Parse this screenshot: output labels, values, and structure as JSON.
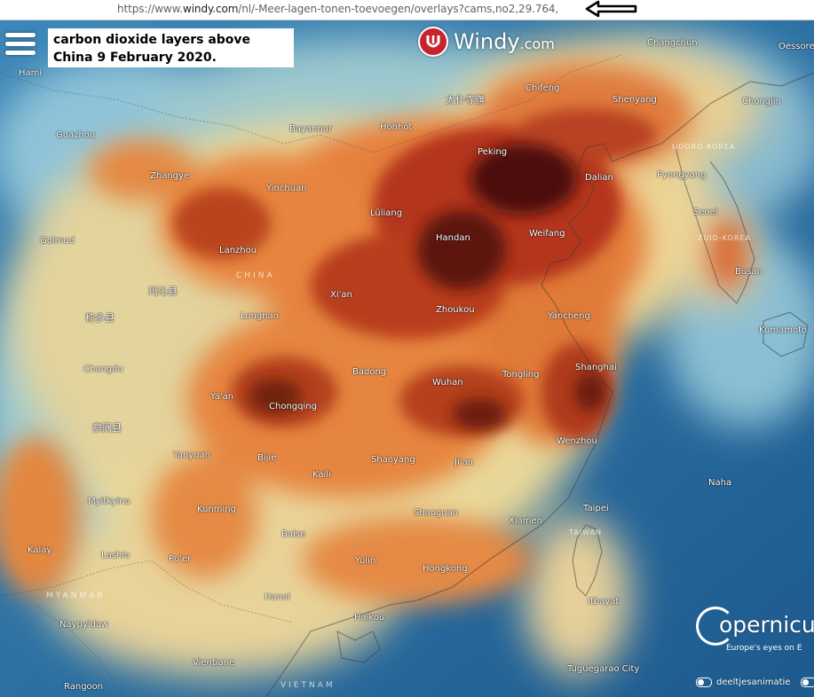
{
  "browser": {
    "url_prefix": "https://www.",
    "url_domain": "windy.com",
    "url_path": "/nl/-Meer-lagen-tonen-toevoegen/overlays?cams,no2,29.764,"
  },
  "annotation": {
    "line1": "carbon dioxide layers above",
    "line2": "China 9 February 2020."
  },
  "logo": {
    "name": "Windy",
    "suffix": ".com"
  },
  "copernicus": {
    "name": "opernicu",
    "tagline": "Europe's eyes on E"
  },
  "toggles": {
    "animation_label": "deeltjesanimatie"
  },
  "regions": {
    "china": "CHINA",
    "myanmar": "MYANMAR",
    "vietnam": "VIETNAM",
    "north_korea": "NOORD-KOREA",
    "south_korea": "ZUID-KOREA",
    "taiwan": "TAIWAN"
  },
  "cities": {
    "hami": "Hami",
    "changchun": "Changchun",
    "chifeng": "Chifeng",
    "taipusi": "太仆寺旗",
    "shenyang": "Shenyang",
    "chongjin": "Chongjin",
    "guazhou": "Guazhou",
    "bayannur": "Bayannur",
    "hohhot": "Hohhot",
    "peking": "Peking",
    "zhangye": "Zhangye",
    "yinchuan": "Yinchuan",
    "dalian": "Dalian",
    "pyongyang": "Pyongyang",
    "luliang": "Lüliang",
    "seoel": "Seoel",
    "golmud": "Golmud",
    "lanzhou": "Lanzhou",
    "handan": "Handan",
    "weifang": "Weifang",
    "busan": "Busan",
    "maqin": "玛沁县",
    "xian": "Xi'an",
    "zhoukou": "Zhoukou",
    "longnan": "Longnan",
    "chenduo": "称多县",
    "yancheng": "Yancheng",
    "kumamoto": "Kumamoto",
    "changdu": "Changdu",
    "badong": "Badong",
    "shanghai": "Shanghai",
    "tongling": "Tongling",
    "wuhan": "Wuhan",
    "yaan": "Ya'an",
    "chongqing": "Chongqing",
    "chayu": "察隅县",
    "wenzhou": "Wenzhou",
    "yanyuan": "Yanyuan",
    "bijie": "Bijie",
    "shaoyang": "Shaoyang",
    "jian": "Ji'an",
    "kaili": "Kaili",
    "naha": "Naha",
    "myitkyina": "Myitkyina",
    "kunming": "Kunming",
    "taipei": "Taipei",
    "shaoguan": "Shaoguan",
    "xiamen": "Xiamen",
    "baise": "Baise",
    "kalay": "Kalay",
    "lashio": "Lashio",
    "puer": "Pu'er",
    "yulin": "Yulin",
    "hongkong": "Hongkong",
    "hanoi": "Hanoi",
    "itbayat": "Itbayat",
    "naypyidaw": "Naypyidaw",
    "haikou": "Haikou",
    "vientiane": "Vientiane",
    "tuguegarao": "Tuguegarao City",
    "rangoon": "Rangoon",
    "oessore": "Oessore"
  },
  "colors": {
    "ocean_deep": "#1f5f95",
    "ocean": "#3d86b8",
    "low": "#8fc3d8",
    "mid": "#e9d89a",
    "high": "#e6803c",
    "very_high": "#b3361a",
    "peak": "#4e0b08"
  }
}
